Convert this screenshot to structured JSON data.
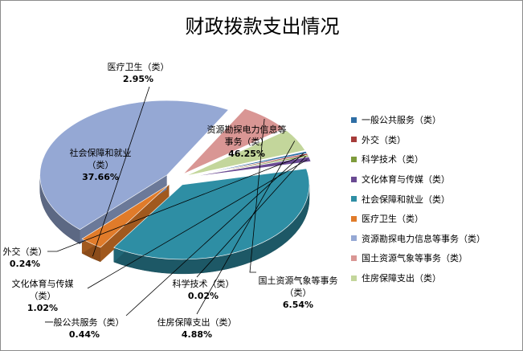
{
  "chart_data": {
    "type": "pie",
    "title": "财政拨款支出情况",
    "series": [
      {
        "name": "一般公共服务（类）",
        "value": 0.44,
        "value_label": "0.44%",
        "color": "#2e6ea5",
        "label_lines": [
          "一般公共服务（类）"
        ],
        "leader": true
      },
      {
        "name": "外交（类）",
        "value": 0.24,
        "value_label": "0.24%",
        "color": "#a63c3a",
        "label_lines": [
          "外交（类）"
        ],
        "leader": true
      },
      {
        "name": "科学技术（类）",
        "value": 0.02,
        "value_label": "0.02%",
        "color": "#7e9b3c",
        "label_lines": [
          "科学技术（类）"
        ],
        "leader": true
      },
      {
        "name": "文化体育与传媒（类）",
        "value": 1.02,
        "value_label": "1.02%",
        "color": "#6a4a92",
        "label_lines": [
          "文化体育与传媒",
          "（类）"
        ],
        "leader": true
      },
      {
        "name": "社会保障和就业（类）",
        "value": 37.66,
        "value_label": "37.66%",
        "color": "#2e8ea4",
        "label_lines": [
          "社会保障和就业",
          "（类）"
        ],
        "leader": false
      },
      {
        "name": "医疗卫生（类）",
        "value": 2.95,
        "value_label": "2.95%",
        "color": "#e07b2a",
        "label_lines": [
          "医疗卫生（类）"
        ],
        "leader": true
      },
      {
        "name": "资源勘探电力信息等事务（类）",
        "value": 46.25,
        "value_label": "46.25%",
        "color": "#95a8d4",
        "label_lines": [
          "资源勘探电力信息等",
          "事务（类）"
        ],
        "leader": false
      },
      {
        "name": "国土资源气象等事务（类）",
        "value": 6.54,
        "value_label": "6.54%",
        "color": "#d99694",
        "label_lines": [
          "国土资源气象等事务",
          "（类）"
        ],
        "leader": true
      },
      {
        "name": "住房保障支出（类）",
        "value": 4.88,
        "value_label": "4.88%",
        "color": "#c3d69b",
        "label_lines": [
          "住房保障支出（类）"
        ],
        "leader": true
      }
    ],
    "legend_position": "right"
  }
}
